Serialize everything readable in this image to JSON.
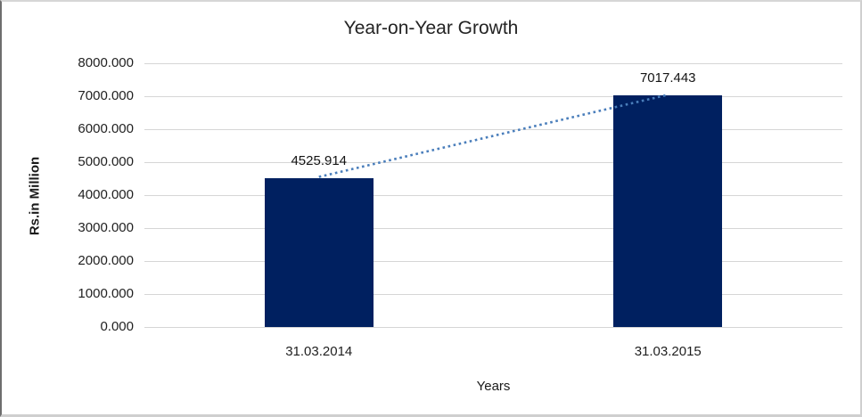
{
  "chart_data": {
    "type": "bar",
    "title": "Year-on-Year Growth",
    "categories": [
      "31.03.2014",
      "31.03.2015"
    ],
    "values": [
      4525.914,
      7017.443
    ],
    "data_labels": [
      "4525.914",
      "7017.443"
    ],
    "xlabel": "Years",
    "ylabel": "Rs.in Million",
    "ylim": [
      0,
      8000
    ],
    "ytick_step": 1000,
    "ytick_labels": [
      "8000.000",
      "7000.000",
      "6000.000",
      "5000.000",
      "4000.000",
      "3000.000",
      "2000.000",
      "1000.000",
      "0.000"
    ],
    "grid": true,
    "legend": "none",
    "trendline": {
      "style": "dotted",
      "connects": "tops of the two bars"
    },
    "colors": {
      "bar": "#002060",
      "gridline": "#d6d6d6",
      "trendline": "#4a7ebb",
      "text": "#1a1a1a"
    }
  }
}
